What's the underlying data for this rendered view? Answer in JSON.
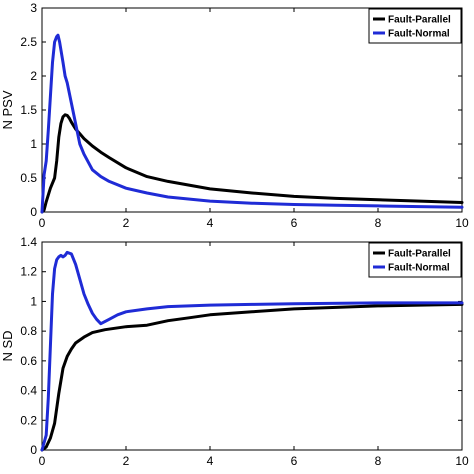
{
  "chart_data": [
    {
      "type": "line",
      "title": "",
      "xlabel": "",
      "ylabel": "N PSV",
      "xlim": [
        0,
        10
      ],
      "ylim": [
        0,
        3
      ],
      "xticks": [
        "0",
        "2",
        "4",
        "6",
        "8",
        "10"
      ],
      "yticks": [
        "0",
        "0.5",
        "1",
        "1.5",
        "2",
        "2.5",
        "3"
      ],
      "grid": false,
      "legend_position": "top-right",
      "series": [
        {
          "name": "Fault-Parallel",
          "color": "#000000",
          "x": [
            0,
            0.05,
            0.1,
            0.2,
            0.3,
            0.35,
            0.4,
            0.45,
            0.5,
            0.55,
            0.6,
            0.65,
            0.7,
            0.8,
            0.9,
            1.0,
            1.2,
            1.4,
            1.6,
            2.0,
            2.5,
            3.0,
            4.0,
            5.0,
            6.0,
            7.0,
            8.0,
            9.0,
            10.0
          ],
          "y": [
            0,
            0.03,
            0.15,
            0.35,
            0.5,
            0.75,
            1.1,
            1.3,
            1.4,
            1.43,
            1.42,
            1.38,
            1.32,
            1.22,
            1.15,
            1.08,
            0.97,
            0.88,
            0.8,
            0.65,
            0.52,
            0.45,
            0.34,
            0.28,
            0.23,
            0.2,
            0.18,
            0.16,
            0.14
          ]
        },
        {
          "name": "Fault-Normal",
          "color": "#1f2bd6",
          "x": [
            0,
            0.05,
            0.1,
            0.15,
            0.2,
            0.25,
            0.3,
            0.35,
            0.38,
            0.42,
            0.5,
            0.55,
            0.6,
            0.7,
            0.8,
            0.9,
            1.0,
            1.2,
            1.4,
            1.6,
            2.0,
            2.5,
            3.0,
            4.0,
            5.0,
            6.0,
            7.0,
            8.0,
            9.0,
            10.0
          ],
          "y": [
            0,
            0.55,
            0.75,
            1.2,
            1.7,
            2.2,
            2.5,
            2.58,
            2.6,
            2.5,
            2.2,
            2.0,
            1.9,
            1.6,
            1.3,
            1.0,
            0.85,
            0.62,
            0.52,
            0.45,
            0.35,
            0.28,
            0.22,
            0.16,
            0.13,
            0.11,
            0.1,
            0.09,
            0.08,
            0.07
          ]
        }
      ]
    },
    {
      "type": "line",
      "title": "",
      "xlabel": "",
      "ylabel": "N SD",
      "xlim": [
        0,
        10
      ],
      "ylim": [
        0,
        1.4
      ],
      "xticks": [
        "0",
        "2",
        "4",
        "6",
        "8",
        "10"
      ],
      "yticks": [
        "0",
        "0.2",
        "0.4",
        "0.6",
        "0.8",
        "1",
        "1.2",
        "1.4"
      ],
      "grid": false,
      "legend_position": "top-right",
      "series": [
        {
          "name": "Fault-Parallel",
          "color": "#000000",
          "x": [
            0,
            0.1,
            0.2,
            0.3,
            0.4,
            0.5,
            0.6,
            0.7,
            0.8,
            1.0,
            1.2,
            1.5,
            2.0,
            2.5,
            3.0,
            3.5,
            4.0,
            5.0,
            6.0,
            7.0,
            8.0,
            9.0,
            10.0
          ],
          "y": [
            0,
            0.02,
            0.08,
            0.18,
            0.38,
            0.55,
            0.63,
            0.68,
            0.72,
            0.76,
            0.79,
            0.81,
            0.83,
            0.84,
            0.87,
            0.89,
            0.91,
            0.93,
            0.95,
            0.96,
            0.97,
            0.975,
            0.98
          ]
        },
        {
          "name": "Fault-Normal",
          "color": "#1f2bd6",
          "x": [
            0,
            0.1,
            0.15,
            0.2,
            0.25,
            0.3,
            0.35,
            0.4,
            0.45,
            0.5,
            0.55,
            0.6,
            0.7,
            0.8,
            0.9,
            1.0,
            1.1,
            1.2,
            1.3,
            1.4,
            1.6,
            1.8,
            2.0,
            2.5,
            3.0,
            4.0,
            5.0,
            6.0,
            8.0,
            10.0
          ],
          "y": [
            0,
            0.1,
            0.35,
            0.7,
            1.05,
            1.22,
            1.28,
            1.3,
            1.31,
            1.3,
            1.31,
            1.33,
            1.32,
            1.25,
            1.15,
            1.05,
            0.98,
            0.92,
            0.88,
            0.85,
            0.88,
            0.91,
            0.93,
            0.95,
            0.965,
            0.975,
            0.98,
            0.985,
            0.99,
            0.99
          ]
        }
      ]
    }
  ]
}
